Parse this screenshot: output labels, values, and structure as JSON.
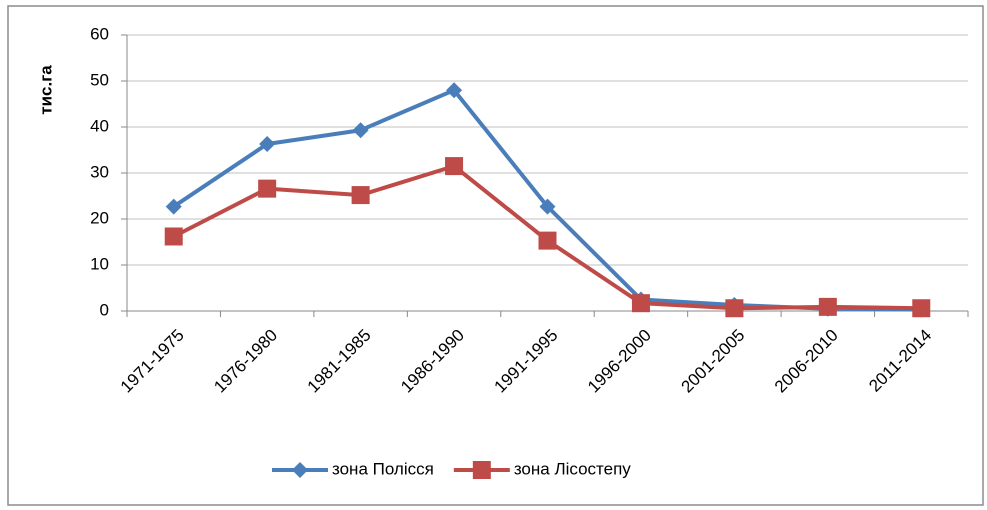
{
  "chart_data": {
    "type": "line",
    "y_label": "тис.га",
    "categories": [
      "1971-1975",
      "1976-1980",
      "1981-1985",
      "1986-1990",
      "1991-1995",
      "1996-2000",
      "2001-2005",
      "2006-2010",
      "2011-2014"
    ],
    "series": [
      {
        "name": "зона Полісся",
        "color": "#4a7ebb",
        "marker": "diamond",
        "values": [
          22.7,
          36.3,
          39.3,
          48,
          22.7,
          2.5,
          1.3,
          0.5,
          0.3
        ]
      },
      {
        "name": "зона Лісостепу",
        "color": "#be4b48",
        "marker": "square",
        "values": [
          16.2,
          26.6,
          25.2,
          31.5,
          15.3,
          1.7,
          0.6,
          0.9,
          0.6
        ]
      }
    ],
    "ylim": [
      0,
      60
    ],
    "yticks": [
      0,
      10,
      20,
      30,
      40,
      50,
      60
    ],
    "grid": true,
    "legend": "bottom"
  }
}
